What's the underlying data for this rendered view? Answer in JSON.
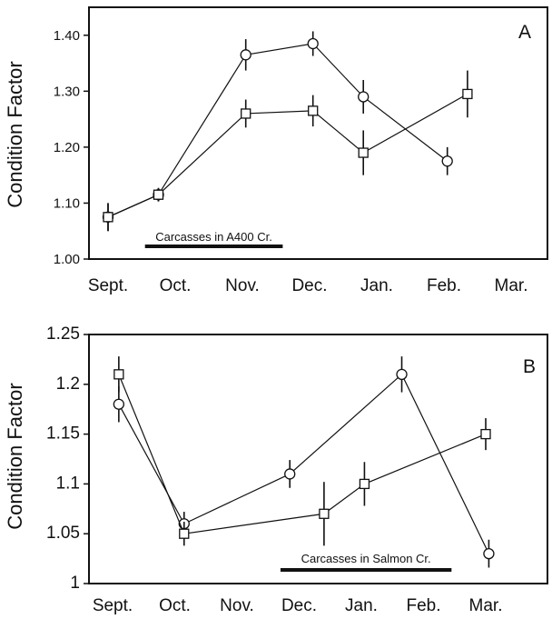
{
  "chart_data": [
    {
      "type": "line",
      "panel_label": "A",
      "ylabel": "Condition Factor",
      "categories": [
        "Sept.",
        "Oct.",
        "Nov.",
        "Dec.",
        "Jan.",
        "Feb.",
        "Mar."
      ],
      "ylim": [
        1.0,
        1.45
      ],
      "yticks": [
        "1.00",
        "1.10",
        "1.20",
        "1.30",
        "1.40"
      ],
      "annotation": "Carcasses in A400 Cr.",
      "annotation_range": [
        0.55,
        2.6
      ],
      "series": [
        {
          "marker": "circle",
          "points": [
            {
              "x": 0.0,
              "y": 1.075,
              "err": 0.025
            },
            {
              "x": 0.75,
              "y": 1.115,
              "err": 0.012
            },
            {
              "x": 2.05,
              "y": 1.365,
              "err": 0.028
            },
            {
              "x": 3.05,
              "y": 1.385,
              "err": 0.022
            },
            {
              "x": 3.8,
              "y": 1.29,
              "err": 0.03
            },
            {
              "x": 5.05,
              "y": 1.175,
              "err": 0.025
            }
          ]
        },
        {
          "marker": "square",
          "points": [
            {
              "x": 0.0,
              "y": 1.075,
              "err": 0.025
            },
            {
              "x": 0.75,
              "y": 1.115,
              "err": 0.012
            },
            {
              "x": 2.05,
              "y": 1.26,
              "err": 0.025
            },
            {
              "x": 3.05,
              "y": 1.265,
              "err": 0.028
            },
            {
              "x": 3.8,
              "y": 1.19,
              "err": 0.04
            },
            {
              "x": 5.35,
              "y": 1.295,
              "err": 0.042
            }
          ]
        }
      ]
    },
    {
      "type": "line",
      "panel_label": "B",
      "ylabel": "Condition Factor",
      "categories": [
        "Sept.",
        "Oct.",
        "Nov.",
        "Dec.",
        "Jan.",
        "Feb.",
        "Mar."
      ],
      "ylim": [
        1.0,
        1.25
      ],
      "yticks": [
        "1",
        "1.05",
        "1.1",
        "1.15",
        "1.2",
        "1.25"
      ],
      "annotation": "Carcasses in Salmon Cr.",
      "annotation_range": [
        2.7,
        5.45
      ],
      "series": [
        {
          "marker": "circle",
          "points": [
            {
              "x": 0.1,
              "y": 1.18,
              "err": 0.018
            },
            {
              "x": 1.15,
              "y": 1.06,
              "err": 0.012
            },
            {
              "x": 2.85,
              "y": 1.11,
              "err": 0.014
            },
            {
              "x": 4.65,
              "y": 1.21,
              "err": 0.018
            },
            {
              "x": 6.05,
              "y": 1.03,
              "err": 0.014
            }
          ]
        },
        {
          "marker": "square",
          "points": [
            {
              "x": 0.1,
              "y": 1.21,
              "err": 0.018
            },
            {
              "x": 1.15,
              "y": 1.05,
              "err": 0.012
            },
            {
              "x": 3.4,
              "y": 1.07,
              "err": 0.032
            },
            {
              "x": 4.05,
              "y": 1.1,
              "err": 0.022
            },
            {
              "x": 6.0,
              "y": 1.15,
              "err": 0.016
            }
          ]
        }
      ]
    }
  ]
}
